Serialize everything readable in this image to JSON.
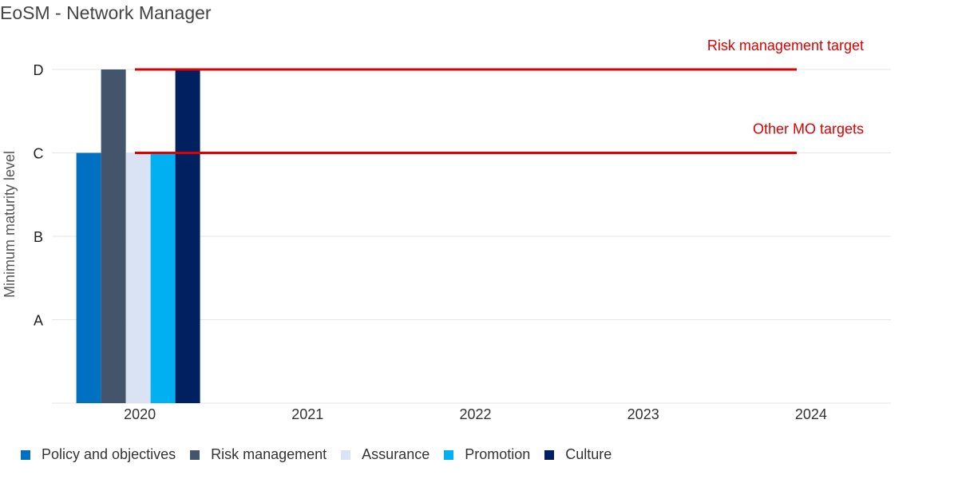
{
  "chart_data": {
    "type": "bar",
    "title": "EoSM - Network Manager",
    "xlabel": "",
    "ylabel": "Minimum maturity level",
    "categories": [
      "2020",
      "2021",
      "2022",
      "2023",
      "2024"
    ],
    "y_levels": [
      "A",
      "B",
      "C",
      "D"
    ],
    "series": [
      {
        "name": "Policy and objectives",
        "color": "#0070c0",
        "values": [
          "C",
          null,
          null,
          null,
          null
        ]
      },
      {
        "name": "Risk management",
        "color": "#44546a",
        "values": [
          "D",
          null,
          null,
          null,
          null
        ]
      },
      {
        "name": "Assurance",
        "color": "#dae3f3",
        "values": [
          "C",
          null,
          null,
          null,
          null
        ]
      },
      {
        "name": "Promotion",
        "color": "#00b0f0",
        "values": [
          "C",
          null,
          null,
          null,
          null
        ]
      },
      {
        "name": "Culture",
        "color": "#002060",
        "values": [
          "D",
          null,
          null,
          null,
          null
        ]
      }
    ],
    "target_lines": [
      {
        "label": "Risk management target",
        "level": "D",
        "color": "#e00000"
      },
      {
        "label": "Other MO targets",
        "level": "C",
        "color": "#e00000"
      }
    ],
    "grid": true,
    "legend_position": "bottom-left"
  }
}
